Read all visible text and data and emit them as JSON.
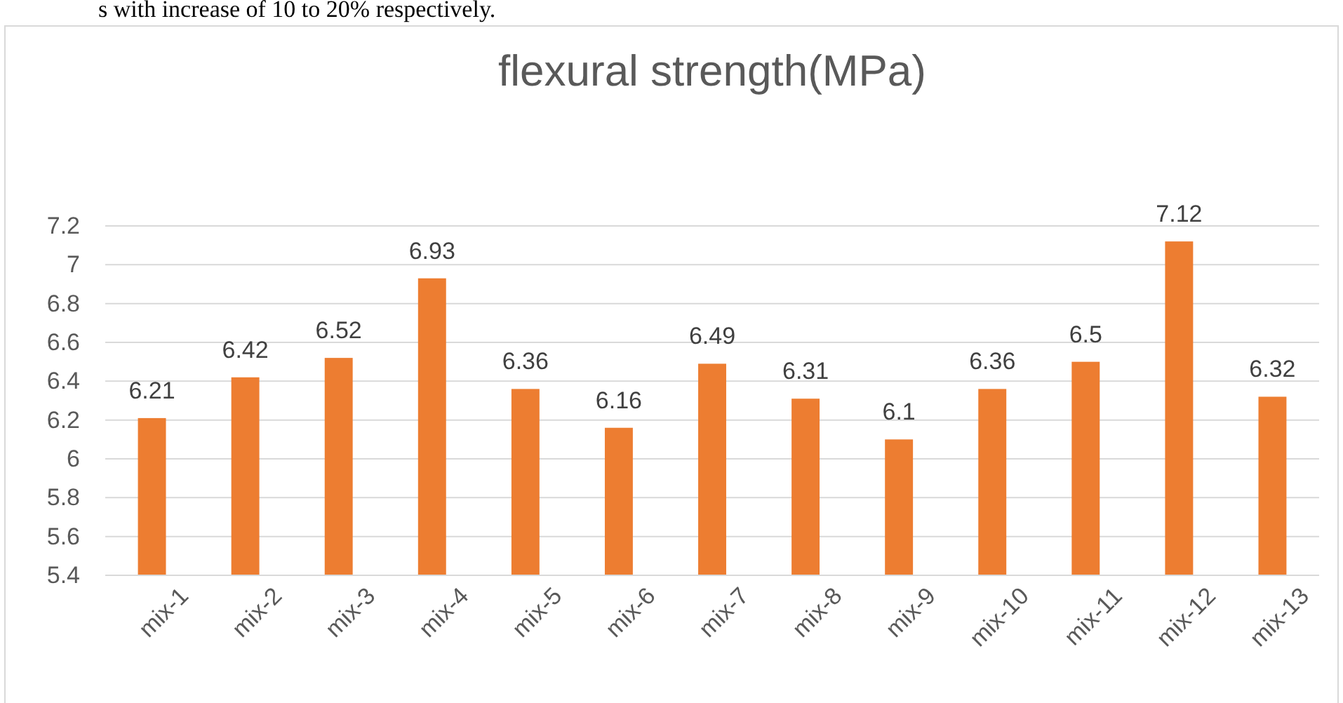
{
  "chart_data": {
    "type": "bar",
    "title": "flexural strength(MPa)",
    "annotations": [
      "s with increase of 10 to 20% respectively."
    ],
    "categories": [
      "mix-1",
      "mix-2",
      "mix-3",
      "mix-4",
      "mix-5",
      "mix-6",
      "mix-7",
      "mix-8",
      "mix-9",
      "mix-10",
      "mix-11",
      "mix-12",
      "mix-13"
    ],
    "values": [
      6.21,
      6.42,
      6.52,
      6.93,
      6.36,
      6.16,
      6.49,
      6.31,
      6.1,
      6.36,
      6.5,
      7.12,
      6.32
    ],
    "color": "#ed7d31",
    "ylim": [
      5.4,
      7.2
    ],
    "yticks": [
      5.4,
      5.6,
      5.8,
      6,
      6.2,
      6.4,
      6.6,
      6.8,
      7,
      7.2
    ],
    "grid": "y",
    "data_labels": true
  }
}
